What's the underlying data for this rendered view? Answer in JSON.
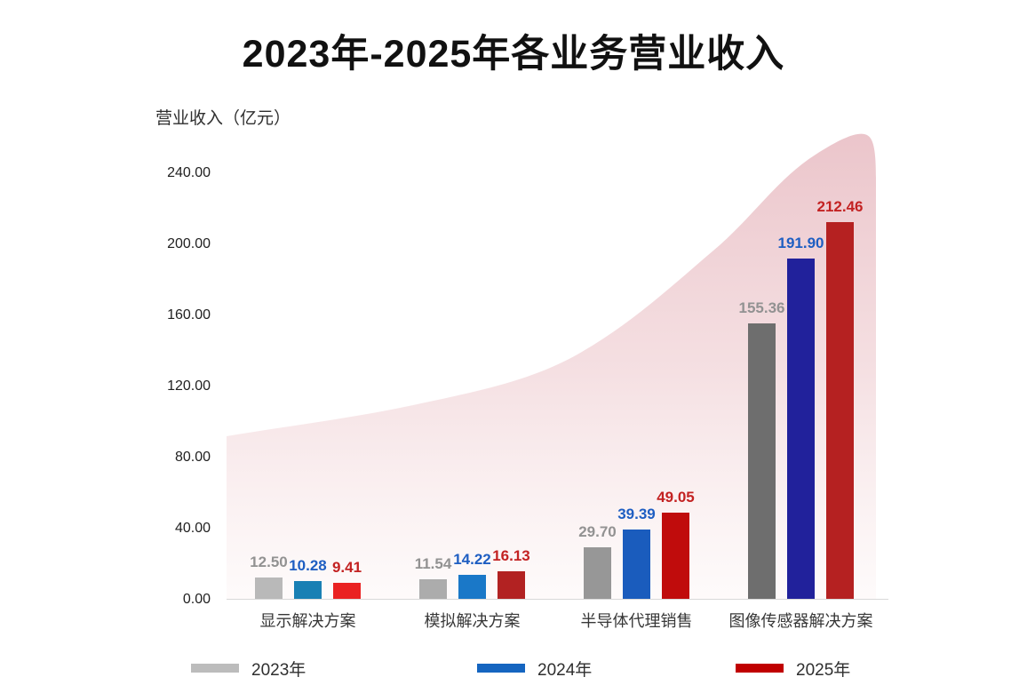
{
  "chart_data": {
    "type": "bar",
    "title": "2023年-2025年各业务营业收入",
    "ylabel": "营业收入（亿元）",
    "xlabel": "",
    "ylim": [
      0,
      240
    ],
    "grid": false,
    "legend_position": "bottom",
    "categories": [
      "显示解决方案",
      "模拟解决方案",
      "半导体代理销售",
      "图像传感器解决方案"
    ],
    "series": [
      {
        "name": "2023年",
        "values": [
          12.5,
          11.54,
          29.7,
          155.36
        ],
        "legend_color": "#bcbcbc",
        "label_color": "#929292",
        "bar_colors": [
          "#b9b9b9",
          "#acacac",
          "#979797",
          "#6e6e6e"
        ]
      },
      {
        "name": "2024年",
        "values": [
          10.28,
          14.22,
          39.39,
          191.9
        ],
        "legend_color": "#1565c0",
        "label_color": "#1e5ec2",
        "bar_colors": [
          "#1980b4",
          "#1a78c8",
          "#1a5cbd",
          "#21219b"
        ]
      },
      {
        "name": "2025年",
        "values": [
          9.41,
          16.13,
          49.05,
          212.46
        ],
        "legend_color": "#c00000",
        "label_color": "#c32222",
        "bar_colors": [
          "#ea2222",
          "#b22222",
          "#c00c0c",
          "#b52121"
        ]
      }
    ],
    "y_ticks": [
      {
        "label": "0.00",
        "value": 0
      },
      {
        "label": "40.00",
        "value": 40
      },
      {
        "label": "80.00",
        "value": 80
      },
      {
        "label": "120.00",
        "value": 120
      },
      {
        "label": "160.00",
        "value": 160
      },
      {
        "label": "200.00",
        "value": 200
      },
      {
        "label": "240.00",
        "value": 240
      }
    ],
    "background_area": {
      "description": "pink gradient growth swoosh behind bars",
      "color_top": "#eac2c8",
      "color_mid": "#f3dadd",
      "color_bottom": "#fdf8f8"
    }
  }
}
